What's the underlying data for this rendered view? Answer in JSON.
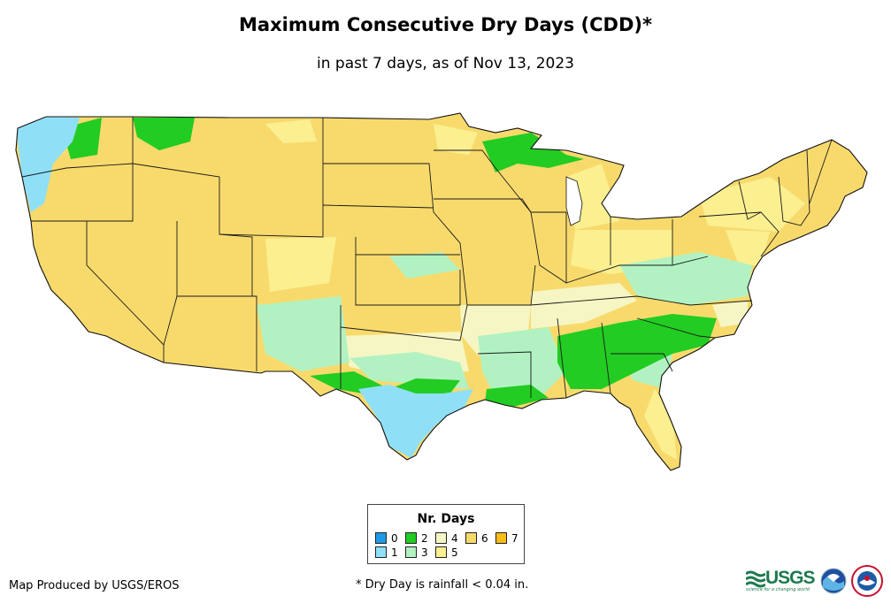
{
  "title": "Maximum Consecutive Dry Days (CDD)*",
  "subtitle": "in past 7 days, as of Nov 13, 2023",
  "legend": {
    "title": "Nr. Days",
    "items": [
      {
        "label": "0",
        "color": "#1e9be8"
      },
      {
        "label": "1",
        "color": "#8fe0f7"
      },
      {
        "label": "2",
        "color": "#22cc22"
      },
      {
        "label": "3",
        "color": "#b2f2c2"
      },
      {
        "label": "4",
        "color": "#f6f6c4"
      },
      {
        "label": "5",
        "color": "#fbef90"
      },
      {
        "label": "6",
        "color": "#f8da6c"
      },
      {
        "label": "7",
        "color": "#f9bd17"
      }
    ]
  },
  "credit": "Map Produced by USGS/EROS",
  "footnote": "* Dry Day is rainfall < 0.04 in.",
  "logos": {
    "usgs_name": "USGS",
    "usgs_tagline": "science for a changing world"
  }
}
